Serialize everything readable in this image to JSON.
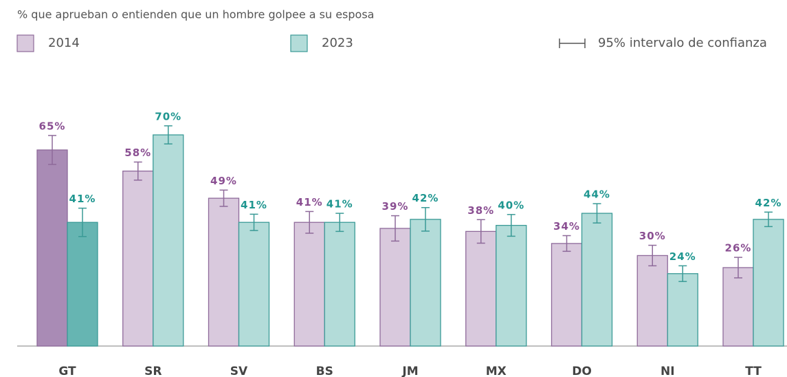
{
  "chart_data": {
    "type": "bar",
    "title": "% que aprueban o entienden que un hombre golpee a su esposa",
    "categories": [
      "GT",
      "SR",
      "SV",
      "BS",
      "JM",
      "MX",
      "DO",
      "NI",
      "TT"
    ],
    "series": [
      {
        "name": "2014",
        "color": "#d9c9dd",
        "stroke": "#8e6a9a",
        "label_color": "#8a4f92",
        "highlight_color": "#a98bb5",
        "values": [
          65,
          58,
          49,
          41,
          39,
          38,
          34,
          30,
          26
        ],
        "value_labels": [
          "65%",
          "58%",
          "49%",
          "41%",
          "39%",
          "38%",
          "34%",
          "30%",
          "26%"
        ],
        "errors": [
          4.8,
          3,
          2.7,
          3.6,
          4.2,
          3.9,
          2.6,
          3.4,
          3.4
        ]
      },
      {
        "name": "2023",
        "color": "#b3dcd9",
        "stroke": "#3a9a96",
        "label_color": "#1f9690",
        "highlight_color": "#66b5b2",
        "values": [
          41,
          70,
          41,
          41,
          42,
          40,
          44,
          24,
          42
        ],
        "value_labels": [
          "41%",
          "70%",
          "41%",
          "41%",
          "42%",
          "40%",
          "44%",
          "24%",
          "42%"
        ],
        "errors": [
          4.7,
          3,
          2.7,
          3,
          3.9,
          3.6,
          3.2,
          2.6,
          2.4
        ]
      }
    ],
    "highlight": "GT",
    "error_legend": "95% intervalo de confianza",
    "ylim": [
      0,
      90
    ]
  }
}
